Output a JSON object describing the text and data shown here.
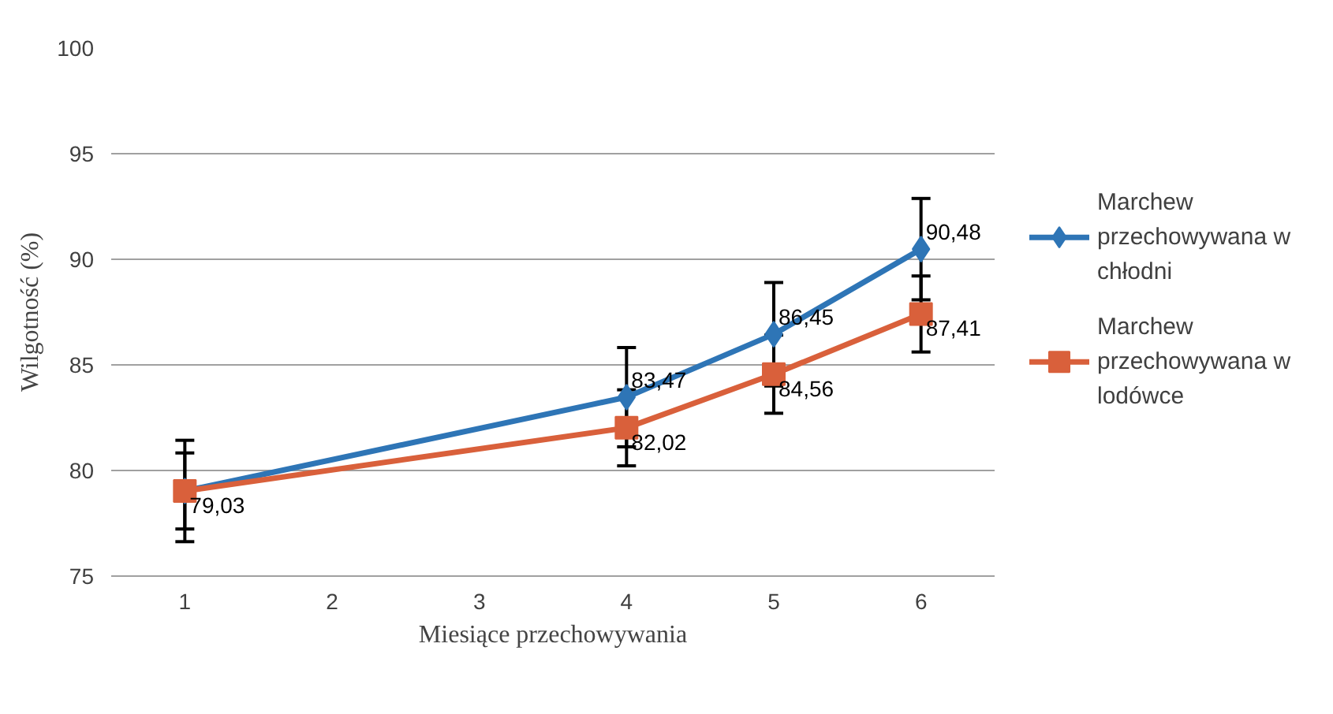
{
  "chart_data": {
    "type": "line",
    "xlabel": "Miesiące przechowywania",
    "ylabel": "Wilgotność (%)",
    "x": [
      1,
      4,
      5,
      6
    ],
    "xlim": [
      0.5,
      6.5
    ],
    "xticks": [
      1,
      2,
      3,
      4,
      5,
      6
    ],
    "ylim": [
      75,
      100
    ],
    "yticks": [
      75,
      80,
      85,
      90,
      95,
      100
    ],
    "grid": "y",
    "legend": "right",
    "line_style": "solid",
    "series": [
      {
        "name": "Marchew przechowywana w chłodni",
        "color": "#2e75b6",
        "marker": "diamond",
        "values": [
          79.03,
          83.47,
          86.45,
          90.48
        ],
        "errors": [
          2.4,
          2.35,
          2.45,
          2.4
        ],
        "value_labels": [
          null,
          "83,47",
          "86,45",
          "90,48"
        ]
      },
      {
        "name": "Marchew przechowywana w lodówce",
        "color": "#d9603b",
        "marker": "square",
        "values": [
          79.03,
          82.02,
          84.56,
          87.41
        ],
        "errors": [
          1.8,
          1.8,
          1.85,
          1.8
        ],
        "value_labels": [
          "79,03",
          "82,02",
          "84,56",
          "87,41"
        ]
      }
    ]
  }
}
